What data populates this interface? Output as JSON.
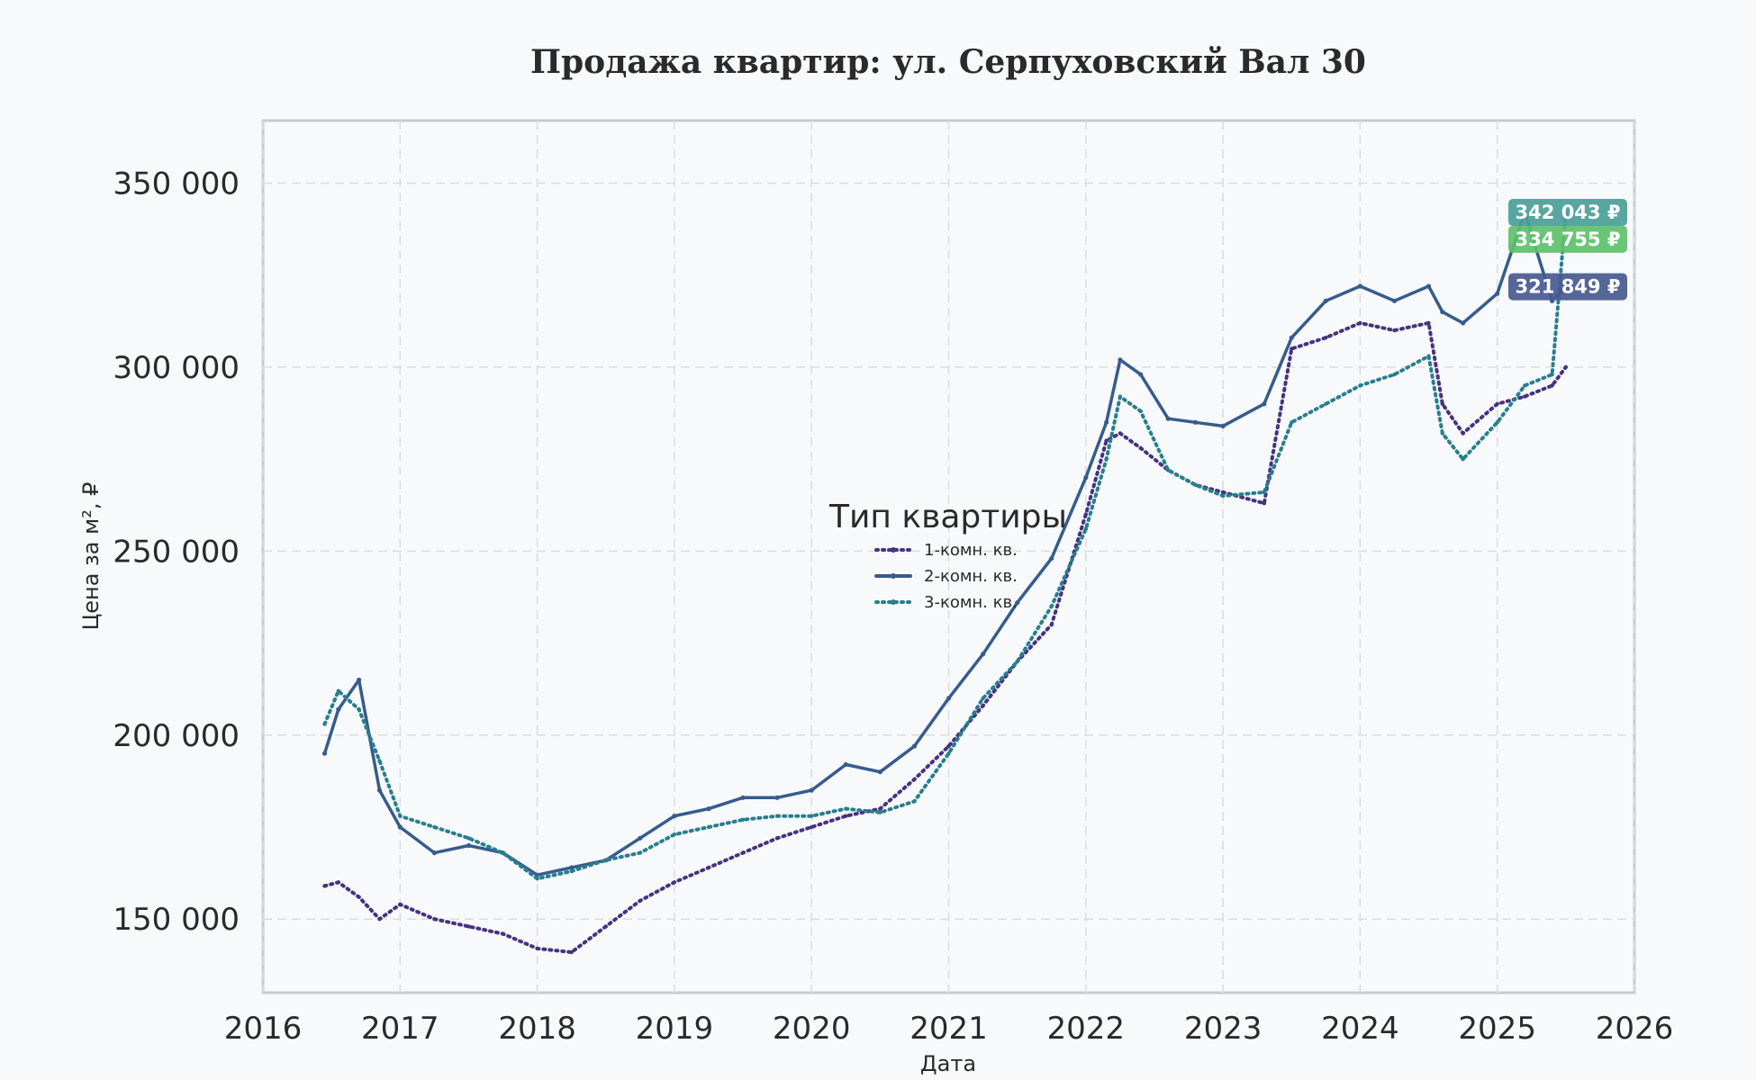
{
  "chart_data": {
    "type": "line",
    "title": "Продажа квартир: ул. Серпуховский Вал 30",
    "xlabel": "Дата",
    "ylabel": "Цена за м², ₽",
    "x_ticks": [
      "2016",
      "2017",
      "2018",
      "2019",
      "2020",
      "2021",
      "2022",
      "2023",
      "2024",
      "2025",
      "2026"
    ],
    "y_ticks": [
      "150 000",
      "200 000",
      "250 000",
      "300 000",
      "350 000"
    ],
    "xlim": [
      2016.0,
      2026.0
    ],
    "ylim": [
      130000,
      367000
    ],
    "grid": true,
    "legend": {
      "title": "Тип квартиры",
      "placement": "center"
    },
    "x": [
      2016.45,
      2016.55,
      2016.7,
      2016.85,
      2017.0,
      2017.25,
      2017.5,
      2017.75,
      2018.0,
      2018.25,
      2018.5,
      2018.75,
      2019.0,
      2019.25,
      2019.5,
      2019.75,
      2020.0,
      2020.25,
      2020.5,
      2020.75,
      2021.0,
      2021.25,
      2021.5,
      2021.75,
      2022.0,
      2022.15,
      2022.25,
      2022.4,
      2022.6,
      2022.8,
      2023.0,
      2023.3,
      2023.5,
      2023.75,
      2024.0,
      2024.25,
      2024.5,
      2024.6,
      2024.75,
      2025.0,
      2025.2,
      2025.4,
      2025.5
    ],
    "series": [
      {
        "name": "1-комн. кв.",
        "color": "#46327e",
        "style": "dotted",
        "values": [
          159000,
          160000,
          156000,
          150000,
          154000,
          150000,
          148000,
          146000,
          142000,
          141000,
          148000,
          155000,
          160000,
          164000,
          168000,
          172000,
          175000,
          178000,
          180000,
          188000,
          197000,
          208000,
          220000,
          230000,
          260000,
          280000,
          282000,
          278000,
          272000,
          268000,
          266000,
          263000,
          305000,
          308000,
          312000,
          310000,
          312000,
          290000,
          282000,
          290000,
          292000,
          295000,
          300000
        ]
      },
      {
        "name": "2-комн. кв.",
        "color": "#365c8d",
        "style": "solid",
        "values": [
          195000,
          207000,
          215000,
          185000,
          175000,
          168000,
          170000,
          168000,
          162000,
          164000,
          166000,
          172000,
          178000,
          180000,
          183000,
          183000,
          185000,
          192000,
          190000,
          197000,
          210000,
          222000,
          236000,
          248000,
          270000,
          285000,
          302000,
          298000,
          286000,
          285000,
          284000,
          290000,
          308000,
          318000,
          322000,
          318000,
          322000,
          315000,
          312000,
          320000,
          342000,
          318000,
          321849
        ]
      },
      {
        "name": "3-комн. кв.",
        "color": "#277f8e",
        "style": "dotted",
        "values": [
          203000,
          212000,
          207000,
          193000,
          178000,
          175000,
          172000,
          168000,
          161000,
          163000,
          166000,
          168000,
          173000,
          175000,
          177000,
          178000,
          178000,
          180000,
          179000,
          182000,
          195000,
          210000,
          220000,
          235000,
          256000,
          275000,
          292000,
          288000,
          272000,
          268000,
          265000,
          266000,
          285000,
          290000,
          295000,
          298000,
          303000,
          282000,
          275000,
          285000,
          295000,
          298000,
          342043
        ]
      }
    ],
    "badges": [
      {
        "label": "342 043 ₽",
        "value": 342043,
        "color": "#4a9e98"
      },
      {
        "label": "334 755 ₽",
        "value": 334755,
        "color": "#5cc16a"
      },
      {
        "label": "321 849 ₽",
        "value": 321849,
        "color": "#46598f"
      }
    ]
  }
}
